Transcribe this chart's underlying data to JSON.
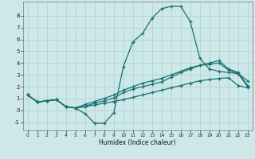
{
  "xlabel": "Humidex (Indice chaleur)",
  "xlim": [
    -0.5,
    23.5
  ],
  "ylim": [
    -1.7,
    9.2
  ],
  "yticks": [
    -1,
    0,
    1,
    2,
    3,
    4,
    5,
    6,
    7,
    8
  ],
  "xticks": [
    0,
    1,
    2,
    3,
    4,
    5,
    6,
    7,
    8,
    9,
    10,
    11,
    12,
    13,
    14,
    15,
    16,
    17,
    18,
    19,
    20,
    21,
    22,
    23
  ],
  "bg_color": "#cde8e8",
  "grid_color": "#b8d4d4",
  "line_color": "#1a7070",
  "line_peak_x": [
    0,
    1,
    2,
    3,
    4,
    5,
    6,
    7,
    8,
    9,
    10,
    11,
    12,
    13,
    14,
    15,
    16,
    17,
    18,
    19,
    20,
    21,
    22,
    23
  ],
  "line_peak_y": [
    1.3,
    0.7,
    0.8,
    0.9,
    0.3,
    0.2,
    -0.3,
    -1.1,
    -1.1,
    -0.2,
    3.7,
    5.8,
    6.5,
    7.8,
    8.6,
    8.8,
    8.8,
    7.5,
    4.4,
    3.5,
    3.3,
    3.2,
    3.1,
    2.5
  ],
  "line_mid_x": [
    0,
    1,
    2,
    3,
    4,
    5,
    6,
    7,
    8,
    9,
    10,
    11,
    12,
    13,
    14,
    15,
    16,
    17,
    18,
    19,
    20,
    21,
    22,
    23
  ],
  "line_mid_y": [
    1.3,
    0.7,
    0.8,
    0.9,
    0.3,
    0.2,
    0.35,
    0.6,
    0.8,
    1.05,
    1.5,
    1.8,
    2.0,
    2.2,
    2.4,
    2.8,
    3.2,
    3.5,
    3.8,
    3.9,
    4.0,
    3.4,
    3.1,
    2.0
  ],
  "line_high_x": [
    0,
    1,
    2,
    3,
    4,
    5,
    6,
    7,
    8,
    9,
    10,
    11,
    12,
    13,
    14,
    15,
    16,
    17,
    18,
    19,
    20,
    21,
    22,
    23
  ],
  "line_high_y": [
    1.3,
    0.7,
    0.8,
    0.9,
    0.3,
    0.2,
    0.5,
    0.75,
    1.0,
    1.3,
    1.7,
    2.0,
    2.3,
    2.5,
    2.7,
    3.0,
    3.3,
    3.6,
    3.8,
    4.0,
    4.2,
    3.5,
    3.2,
    2.1
  ],
  "line_low_x": [
    0,
    1,
    2,
    3,
    4,
    5,
    6,
    7,
    8,
    9,
    10,
    11,
    12,
    13,
    14,
    15,
    16,
    17,
    18,
    19,
    20,
    21,
    22,
    23
  ],
  "line_low_y": [
    1.3,
    0.7,
    0.8,
    0.9,
    0.3,
    0.2,
    0.3,
    0.45,
    0.6,
    0.75,
    0.9,
    1.1,
    1.3,
    1.5,
    1.7,
    1.9,
    2.1,
    2.3,
    2.5,
    2.6,
    2.7,
    2.75,
    2.1,
    1.9
  ]
}
